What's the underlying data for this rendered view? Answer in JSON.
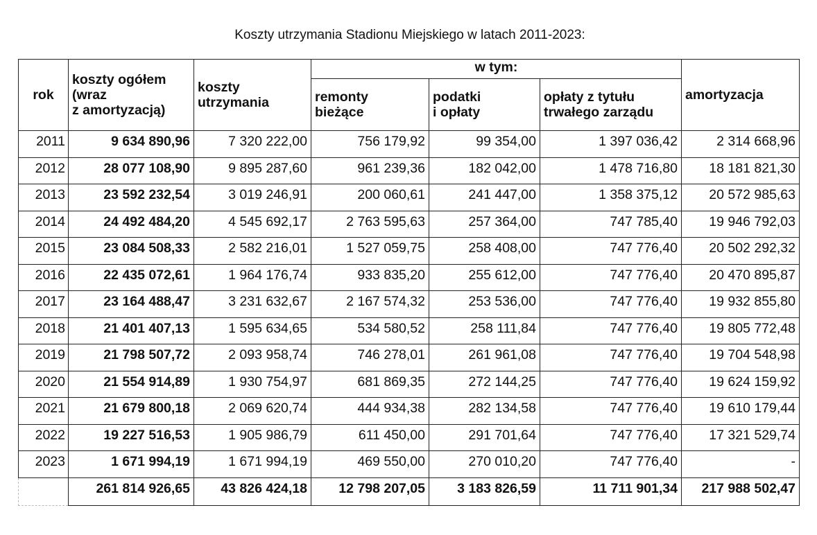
{
  "title": "Koszty utrzymania Stadionu Miejskiego w latach 2011-2023:",
  "headers": {
    "rok": "rok",
    "koszty_ogolem_l1": "koszty  ogółem",
    "koszty_ogolem_l2": "(wraz",
    "koszty_ogolem_l3": "z amortyzacją)",
    "koszty_utrzymania_l1": "koszty",
    "koszty_utrzymania_l2": "utrzymania",
    "w_tym": "w tym:",
    "remonty_l1": "remonty",
    "remonty_l2": "bieżące",
    "podatki_l1": "podatki",
    "podatki_l2": "i opłaty",
    "oplaty_l1": "opłaty  z tytułu",
    "oplaty_l2": "trwałego  zarządu",
    "amortyzacja": "amortyzacja"
  },
  "rows": [
    [
      "2011",
      "9 634 890,96",
      "7 320 222,00",
      "756 179,92",
      "99 354,00",
      "1 397 036,42",
      "2 314 668,96"
    ],
    [
      "2012",
      "28 077 108,90",
      "9 895 287,60",
      "961 239,36",
      "182 042,00",
      "1 478 716,80",
      "18 181 821,30"
    ],
    [
      "2013",
      "23 592 232,54",
      "3 019 246,91",
      "200 060,61",
      "241 447,00",
      "1 358 375,12",
      "20 572 985,63"
    ],
    [
      "2014",
      "24 492 484,20",
      "4 545 692,17",
      "2 763 595,63",
      "257 364,00",
      "747 785,40",
      "19 946 792,03"
    ],
    [
      "2015",
      "23 084 508,33",
      "2 582 216,01",
      "1 527 059,75",
      "258 408,00",
      "747 776,40",
      "20 502 292,32"
    ],
    [
      "2016",
      "22 435 072,61",
      "1 964 176,74",
      "933 835,20",
      "255 612,00",
      "747 776,40",
      "20 470 895,87"
    ],
    [
      "2017",
      "23 164 488,47",
      "3 231 632,67",
      "2 167 574,32",
      "253 536,00",
      "747 776,40",
      "19 932 855,80"
    ],
    [
      "2018",
      "21 401 407,13",
      "1 595 634,65",
      "534 580,52",
      "258 111,84",
      "747 776,40",
      "19 805 772,48"
    ],
    [
      "2019",
      "21 798 507,72",
      "2 093 958,74",
      "746 278,01",
      "261 961,08",
      "747 776,40",
      "19 704 548,98"
    ],
    [
      "2020",
      "21 554 914,89",
      "1 930 754,97",
      "681 869,35",
      "272 144,25",
      "747 776,40",
      "19 624 159,92"
    ],
    [
      "2021",
      "21 679 800,18",
      "2 069 620,74",
      "444 934,38",
      "282 134,58",
      "747 776,40",
      "19 610 179,44"
    ],
    [
      "2022",
      "19 227 516,53",
      "1 905 986,79",
      "611 450,00",
      "291 701,64",
      "747 776,40",
      "17 321 529,74"
    ],
    [
      "2023",
      "1 671 994,19",
      "1 671 994,19",
      "469 550,00",
      "270 010,20",
      "747 776,40",
      "-"
    ]
  ],
  "totals": [
    "",
    "261 814 926,65",
    "43 826 424,18",
    "12 798 207,05",
    "3 183 826,59",
    "11 711 901,34",
    "217 988 502,47"
  ]
}
